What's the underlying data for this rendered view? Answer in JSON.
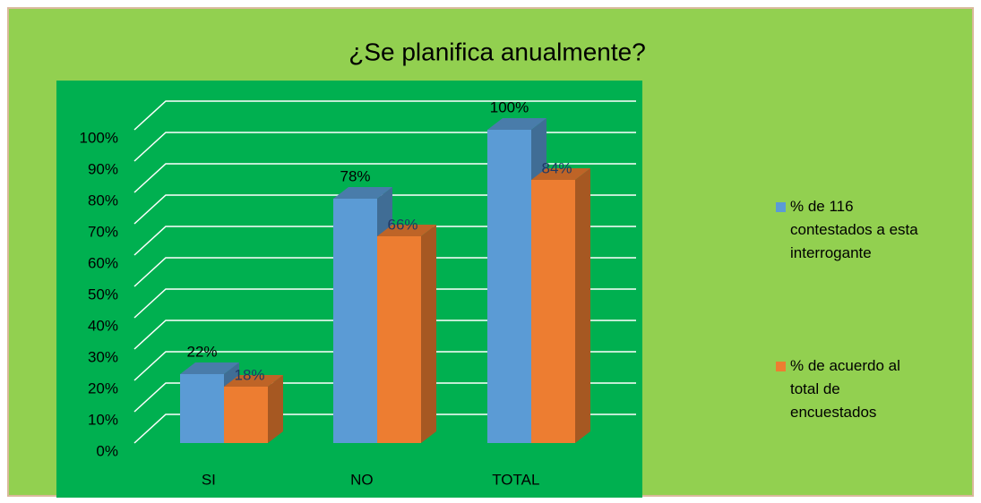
{
  "chart_data": {
    "type": "bar3d",
    "title": "¿Se planifica anualmente?",
    "categories": [
      "SI",
      "NO",
      "TOTAL"
    ],
    "series": [
      {
        "name": "% de 116 contestados a esta interrogante",
        "color": "#5b9bd5",
        "values": [
          22,
          78,
          100
        ],
        "value_labels": [
          "22%",
          "78%",
          "100%"
        ]
      },
      {
        "name": "% de acuerdo al total de encuestados",
        "color": "#ed7d31",
        "values": [
          18,
          66,
          84
        ],
        "value_labels": [
          "18%",
          "66%",
          "84%"
        ]
      }
    ],
    "ylim": [
      0,
      100
    ],
    "yticks": [
      {
        "value": 0,
        "label": "0%"
      },
      {
        "value": 10,
        "label": "10%"
      },
      {
        "value": 20,
        "label": "20%"
      },
      {
        "value": 30,
        "label": "30%"
      },
      {
        "value": 40,
        "label": "40%"
      },
      {
        "value": 50,
        "label": "50%"
      },
      {
        "value": 60,
        "label": "60%"
      },
      {
        "value": 70,
        "label": "70%"
      },
      {
        "value": 80,
        "label": "80%"
      },
      {
        "value": 90,
        "label": "90%"
      },
      {
        "value": 100,
        "label": "100%"
      }
    ],
    "grid": true,
    "legend": "right"
  }
}
